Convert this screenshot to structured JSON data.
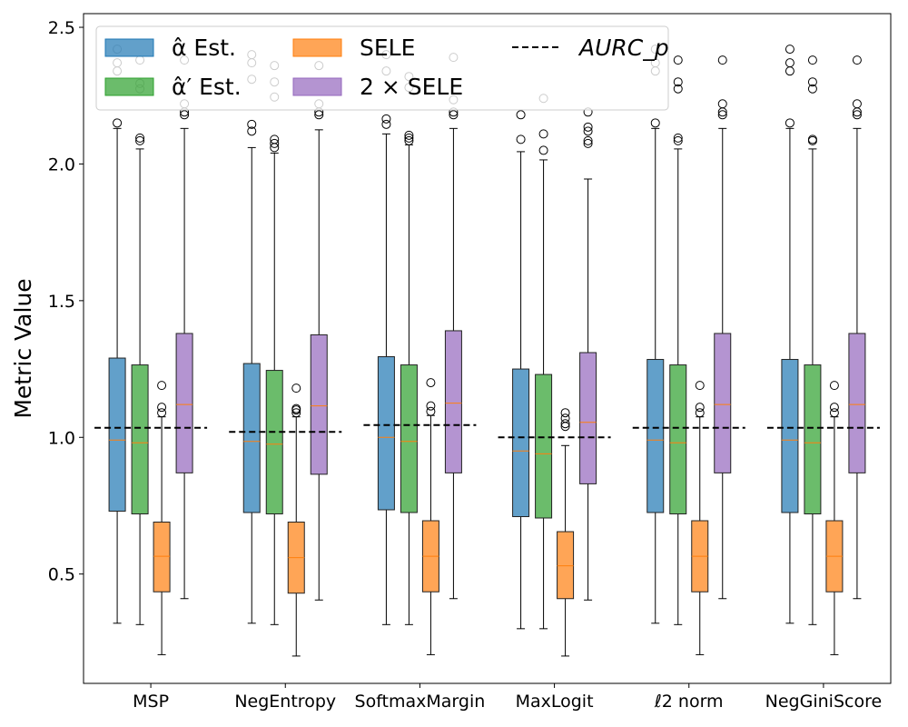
{
  "chart_data": {
    "type": "boxplot",
    "ylabel": "Metric Value",
    "xlabel": "",
    "ylim": [
      0.1,
      2.55
    ],
    "yticks": [
      "0.5",
      "1.0",
      "1.5",
      "2.0",
      "2.5"
    ],
    "categories": [
      "MSP",
      "NegEntropy",
      "SoftmaxMargin",
      "MaxLogit",
      "ℓ2 norm",
      "NegGiniScore"
    ],
    "series": [
      {
        "name": "α̂ Est.",
        "color": "#1f77b4",
        "boxes": [
          {
            "whislo": 0.32,
            "q1": 0.73,
            "med": 0.99,
            "q3": 1.29,
            "whishi": 2.13,
            "fliers": [
              2.15,
              2.34,
              2.37,
              2.42
            ]
          },
          {
            "whislo": 0.32,
            "q1": 0.725,
            "med": 0.985,
            "q3": 1.27,
            "whishi": 2.06,
            "fliers": [
              2.12,
              2.145,
              2.31,
              2.37,
              2.4
            ]
          },
          {
            "whislo": 0.315,
            "q1": 0.735,
            "med": 1.0,
            "q3": 1.295,
            "whishi": 2.11,
            "fliers": [
              2.145,
              2.165,
              2.34,
              2.4
            ]
          },
          {
            "whislo": 0.3,
            "q1": 0.71,
            "med": 0.95,
            "q3": 1.25,
            "whishi": 2.045,
            "fliers": [
              2.09,
              2.18
            ]
          },
          {
            "whislo": 0.32,
            "q1": 0.725,
            "med": 0.99,
            "q3": 1.285,
            "whishi": 2.13,
            "fliers": [
              2.15,
              2.34,
              2.37,
              2.42
            ]
          },
          {
            "whislo": 0.32,
            "q1": 0.725,
            "med": 0.99,
            "q3": 1.285,
            "whishi": 2.13,
            "fliers": [
              2.15,
              2.34,
              2.37,
              2.42
            ]
          }
        ]
      },
      {
        "name": "α̂′ Est.",
        "color": "#2ca02c",
        "boxes": [
          {
            "whislo": 0.315,
            "q1": 0.72,
            "med": 0.98,
            "q3": 1.265,
            "whishi": 2.055,
            "fliers": [
              2.085,
              2.095,
              2.275,
              2.295,
              2.38
            ]
          },
          {
            "whislo": 0.315,
            "q1": 0.72,
            "med": 0.975,
            "q3": 1.245,
            "whishi": 2.04,
            "fliers": [
              2.06,
              2.075,
              2.09,
              2.245,
              2.3,
              2.36
            ]
          },
          {
            "whislo": 0.315,
            "q1": 0.725,
            "med": 0.985,
            "q3": 1.265,
            "whishi": 2.07,
            "fliers": [
              2.085,
              2.095,
              2.105,
              2.28,
              2.32
            ]
          },
          {
            "whislo": 0.3,
            "q1": 0.705,
            "med": 0.94,
            "q3": 1.23,
            "whishi": 2.015,
            "fliers": [
              2.05,
              2.11,
              2.24
            ]
          },
          {
            "whislo": 0.315,
            "q1": 0.72,
            "med": 0.98,
            "q3": 1.265,
            "whishi": 2.055,
            "fliers": [
              2.085,
              2.095,
              2.275,
              2.3,
              2.38
            ]
          },
          {
            "whislo": 0.315,
            "q1": 0.72,
            "med": 0.98,
            "q3": 1.265,
            "whishi": 2.055,
            "fliers": [
              2.085,
              2.09,
              2.275,
              2.3,
              2.38
            ]
          }
        ]
      },
      {
        "name": "SELE",
        "color": "#ff7f0e",
        "boxes": [
          {
            "whislo": 0.205,
            "q1": 0.435,
            "med": 0.565,
            "q3": 0.69,
            "whishi": 1.075,
            "fliers": [
              1.09,
              1.11,
              1.19
            ]
          },
          {
            "whislo": 0.2,
            "q1": 0.43,
            "med": 0.56,
            "q3": 0.69,
            "whishi": 1.075,
            "fliers": [
              1.09,
              1.1,
              1.105,
              1.18
            ]
          },
          {
            "whislo": 0.205,
            "q1": 0.435,
            "med": 0.565,
            "q3": 0.695,
            "whishi": 1.08,
            "fliers": [
              1.095,
              1.115,
              1.2
            ]
          },
          {
            "whislo": 0.2,
            "q1": 0.41,
            "med": 0.53,
            "q3": 0.655,
            "whishi": 0.97,
            "fliers": [
              1.04,
              1.05,
              1.07,
              1.09
            ]
          },
          {
            "whislo": 0.205,
            "q1": 0.435,
            "med": 0.565,
            "q3": 0.695,
            "whishi": 1.075,
            "fliers": [
              1.09,
              1.11,
              1.19
            ]
          },
          {
            "whislo": 0.205,
            "q1": 0.435,
            "med": 0.565,
            "q3": 0.695,
            "whishi": 1.075,
            "fliers": [
              1.09,
              1.11,
              1.19
            ]
          }
        ]
      },
      {
        "name": "2 × SELE",
        "color": "#9467bd",
        "boxes": [
          {
            "whislo": 0.41,
            "q1": 0.87,
            "med": 1.12,
            "q3": 1.38,
            "whishi": 2.13,
            "fliers": [
              2.18,
              2.19,
              2.22,
              2.38
            ]
          },
          {
            "whislo": 0.405,
            "q1": 0.865,
            "med": 1.115,
            "q3": 1.375,
            "whishi": 2.125,
            "fliers": [
              2.18,
              2.19,
              2.22,
              2.36
            ]
          },
          {
            "whislo": 0.41,
            "q1": 0.87,
            "med": 1.125,
            "q3": 1.39,
            "whishi": 2.13,
            "fliers": [
              2.18,
              2.19,
              2.235,
              2.39
            ]
          },
          {
            "whislo": 0.405,
            "q1": 0.83,
            "med": 1.055,
            "q3": 1.31,
            "whishi": 1.945,
            "fliers": [
              2.075,
              2.085,
              2.12,
              2.135,
              2.19
            ]
          },
          {
            "whislo": 0.41,
            "q1": 0.87,
            "med": 1.12,
            "q3": 1.38,
            "whishi": 2.13,
            "fliers": [
              2.18,
              2.19,
              2.22,
              2.38
            ]
          },
          {
            "whislo": 0.41,
            "q1": 0.87,
            "med": 1.12,
            "q3": 1.38,
            "whishi": 2.13,
            "fliers": [
              2.18,
              2.19,
              2.22,
              2.38
            ]
          }
        ]
      }
    ],
    "reference_line": {
      "name": "AURC_p",
      "style": "dashed",
      "color": "#000000",
      "values": [
        1.035,
        1.02,
        1.045,
        1.0,
        1.035,
        1.035
      ]
    },
    "legend": {
      "position": "top",
      "ncol": 3
    }
  }
}
